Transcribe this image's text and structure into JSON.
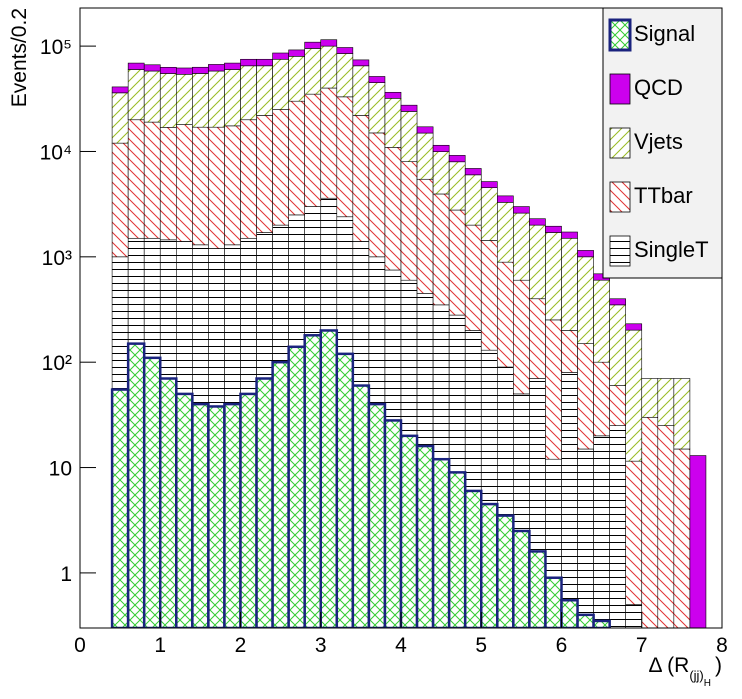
{
  "chart_data": {
    "type": "histogram",
    "ylabel": "Events/0.2",
    "xlabel": {
      "main": "Δ (R",
      "sub": "(jj)",
      "subsub": "H",
      "close": ")"
    },
    "bins": [
      0,
      0.2,
      0.4,
      0.6,
      0.8,
      1,
      1.2,
      1.4,
      1.6,
      1.8,
      2,
      2.2,
      2.4,
      2.6,
      2.8,
      3,
      3.2,
      3.4,
      3.6,
      3.8,
      4,
      4.2,
      4.4,
      4.6,
      4.8,
      5,
      5.2,
      5.4,
      5.6,
      5.8,
      6,
      6.2,
      6.4,
      6.6,
      6.8,
      7,
      7.2,
      7.4,
      7.6,
      7.8,
      8
    ],
    "xlim": [
      0,
      8
    ],
    "xticks": [
      0,
      1,
      2,
      3,
      4,
      5,
      6,
      7,
      8
    ],
    "ylim": [
      0.3,
      230000
    ],
    "yticks": [
      1,
      10,
      {
        "value": 100,
        "label": "10²"
      },
      {
        "value": 1000,
        "label": "10³"
      },
      {
        "value": 10000,
        "label": "10⁴"
      },
      {
        "value": 100000,
        "label": "10⁵"
      }
    ],
    "log_y": true,
    "legend": "top-right",
    "series": [
      {
        "name": "Signal",
        "color": "#33cc33",
        "pattern": "cross",
        "stacked": false,
        "values": [
          null,
          null,
          55,
          150,
          110,
          70,
          50,
          40,
          38,
          40,
          50,
          70,
          100,
          140,
          180,
          200,
          120,
          60,
          40,
          28,
          20,
          16,
          12,
          9,
          6,
          4.5,
          3.5,
          2.5,
          1.6,
          0.9,
          0.55,
          0.4,
          0.35,
          null,
          null,
          null,
          null,
          null,
          null,
          null
        ]
      },
      {
        "name": "QCD",
        "color": "#cc00ee",
        "pattern": "solid",
        "stacked": true,
        "values": [
          null,
          null,
          5000,
          9000,
          8500,
          8000,
          8000,
          8000,
          9000,
          9000,
          10000,
          10000,
          11000,
          12000,
          14000,
          15000,
          12000,
          9000,
          6500,
          4500,
          3500,
          2200,
          1500,
          1200,
          900,
          650,
          500,
          400,
          300,
          250,
          220,
          150,
          90,
          50,
          30,
          null,
          null,
          null,
          13,
          null
        ]
      },
      {
        "name": "Vjets",
        "color": "#99bb22",
        "pattern": "diag-up",
        "stacked": true,
        "values": [
          null,
          null,
          24000,
          40000,
          39000,
          38000,
          36000,
          38000,
          41000,
          42500,
          45000,
          43000,
          50000,
          50000,
          60000,
          60000,
          52000,
          43000,
          30000,
          21000,
          16000,
          9500,
          6000,
          5200,
          4000,
          3100,
          2400,
          2000,
          1600,
          1450,
          1300,
          850,
          500,
          290,
          190,
          40,
          45,
          55,
          null,
          null
        ]
      },
      {
        "name": "TTbar",
        "color": "#e03333",
        "pattern": "diag-down",
        "stacked": true,
        "values": [
          null,
          null,
          11000,
          18500,
          17500,
          15500,
          16600,
          15700,
          15800,
          16200,
          18500,
          20300,
          23000,
          27500,
          32000,
          36400,
          30600,
          20600,
          14000,
          10200,
          7400,
          5000,
          3600,
          2500,
          1800,
          1300,
          800,
          550,
          330,
          240,
          120,
          135,
          80,
          35,
          11,
          30,
          25,
          15,
          null,
          null
        ]
      },
      {
        "name": "SingleT",
        "color": "#000000",
        "pattern": "horizontal",
        "stacked": true,
        "values": [
          null,
          null,
          1000,
          1500,
          1500,
          1450,
          1400,
          1300,
          1200,
          1300,
          1500,
          1700,
          2000,
          2500,
          3000,
          3600,
          2400,
          1400,
          1000,
          750,
          600,
          450,
          350,
          280,
          200,
          130,
          90,
          50,
          70,
          12,
          80,
          15,
          20,
          25,
          0.5,
          null,
          null,
          null,
          null,
          null
        ]
      }
    ]
  }
}
